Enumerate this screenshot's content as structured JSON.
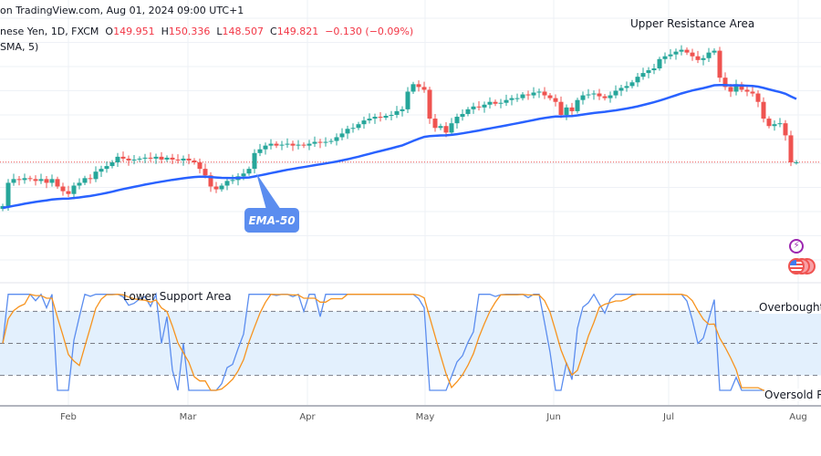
{
  "header": {
    "source": "on TradingView.com, Aug 01, 2024 09:00 UTC+1",
    "symbol": "nese Yen, 1D, FXCM",
    "o_label": "O",
    "o": "149.951",
    "h_label": "H",
    "h": "150.336",
    "l_label": "L",
    "l": "148.507",
    "c_label": "C",
    "c": "149.821",
    "change": "−0.130 (−0.09%)",
    "indicator": "SMA, 5)"
  },
  "annotations": {
    "upper": "Upper Resistance Area",
    "lower": "Lower Support Area",
    "overbought": "Overbought L",
    "oversold": "Oversold Re",
    "ema_callout": "EMA-50"
  },
  "colors": {
    "up": "#26a69a",
    "down": "#ef5350",
    "ema": "#2962ff",
    "k_line": "#5b8def",
    "d_line": "#f7931e",
    "band": "#e3f0fd"
  },
  "icons": [
    "lightning-event-icon",
    "us-flag-event-icon"
  ],
  "chart_data": {
    "type": "candlestick",
    "x_ticks": [
      "Feb",
      "Mar",
      "Apr",
      "May",
      "Jun",
      "Jul",
      "Aug"
    ],
    "last_price": 149.821,
    "closes": [
      145.1,
      147.6,
      148.0,
      147.9,
      148.1,
      148.0,
      147.8,
      148.0,
      147.6,
      148.0,
      147.2,
      146.7,
      146.4,
      147.3,
      147.6,
      148.1,
      148.0,
      148.8,
      149.1,
      149.4,
      149.8,
      150.4,
      150.2,
      150.0,
      150.1,
      150.2,
      150.3,
      150.2,
      150.4,
      150.1,
      150.3,
      150.1,
      150.0,
      150.2,
      150.0,
      149.8,
      149.1,
      148.4,
      147.2,
      146.9,
      147.3,
      147.8,
      147.9,
      148.3,
      148.6,
      149.1,
      150.8,
      151.2,
      151.6,
      151.8,
      151.6,
      151.7,
      151.8,
      151.6,
      151.7,
      151.6,
      151.8,
      152.0,
      151.9,
      152.0,
      152.1,
      152.5,
      152.9,
      153.4,
      153.5,
      153.9,
      154.3,
      154.5,
      154.7,
      154.6,
      154.8,
      154.9,
      155.3,
      155.5,
      157.4,
      158.2,
      157.9,
      157.6,
      154.5,
      153.5,
      153.7,
      153.0,
      154.0,
      154.7,
      155.0,
      155.5,
      155.8,
      155.7,
      156.0,
      156.3,
      156.1,
      156.2,
      156.5,
      156.7,
      156.7,
      157.1,
      157.0,
      157.3,
      157.4,
      157.0,
      156.7,
      156.3,
      154.9,
      155.7,
      155.3,
      156.5,
      157.0,
      157.1,
      157.2,
      156.9,
      156.7,
      157.0,
      157.5,
      157.8,
      158.0,
      158.4,
      159.0,
      159.4,
      159.7,
      159.9,
      160.9,
      161.2,
      161.4,
      161.7,
      161.9,
      161.6,
      161.2,
      160.8,
      161.0,
      161.6,
      161.8,
      158.9,
      157.9,
      157.4,
      158.2,
      157.6,
      157.4,
      157.2,
      156.3,
      154.5,
      153.7,
      153.9,
      154.0,
      152.7,
      149.8,
      149.8
    ],
    "ema_period": 50,
    "oscillator_levels": {
      "overbought": 80,
      "middle": 50,
      "oversold": 20
    },
    "oscillator_range": [
      0,
      100
    ],
    "oscillator_smoothing": "SMA, 5"
  }
}
